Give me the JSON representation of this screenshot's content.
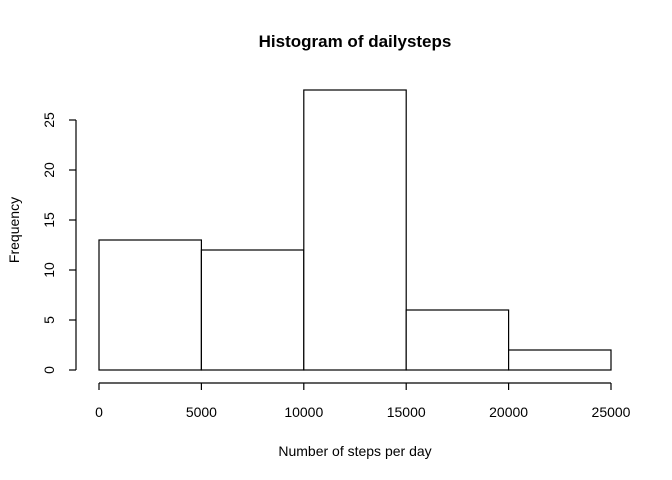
{
  "chart_data": {
    "type": "bar",
    "title": "Histogram of dailysteps",
    "xlabel": "Number of steps per day",
    "ylabel": "Frequency",
    "bins": [
      {
        "from": 0,
        "to": 5000,
        "count": 13
      },
      {
        "from": 5000,
        "to": 10000,
        "count": 12
      },
      {
        "from": 10000,
        "to": 15000,
        "count": 28
      },
      {
        "from": 15000,
        "to": 20000,
        "count": 6
      },
      {
        "from": 20000,
        "to": 25000,
        "count": 2
      }
    ],
    "xlim": [
      0,
      25000
    ],
    "ylim": [
      0,
      28
    ],
    "x_ticks": [
      0,
      5000,
      10000,
      15000,
      20000,
      25000
    ],
    "y_ticks": [
      0,
      5,
      10,
      15,
      20,
      25
    ],
    "grid": false,
    "legend": "none",
    "colors": {
      "bar_fill": "#ffffff",
      "bar_stroke": "#000000"
    }
  }
}
